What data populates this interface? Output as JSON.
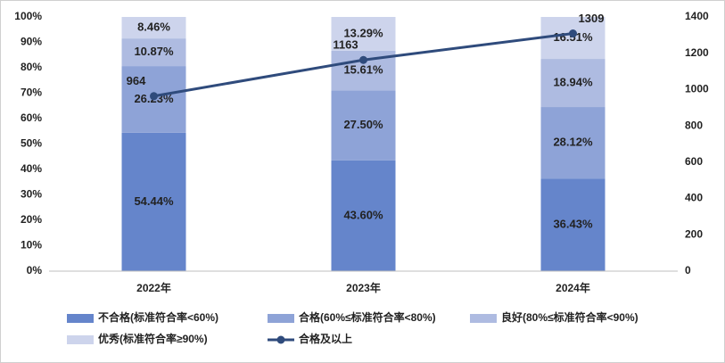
{
  "chart_data": {
    "type": "stacked_bar_line",
    "categories": [
      "2022年",
      "2023年",
      "2024年"
    ],
    "ylim": [
      0,
      100
    ],
    "yticks": [
      {
        "value": 0,
        "label": "0%"
      },
      {
        "value": 10,
        "label": "10%"
      },
      {
        "value": 20,
        "label": "20%"
      },
      {
        "value": 30,
        "label": "30%"
      },
      {
        "value": 40,
        "label": "40%"
      },
      {
        "value": 50,
        "label": "50%"
      },
      {
        "value": 60,
        "label": "60%"
      },
      {
        "value": 70,
        "label": "70%"
      },
      {
        "value": 80,
        "label": "80%"
      },
      {
        "value": 90,
        "label": "90%"
      },
      {
        "value": 100,
        "label": "100%"
      }
    ],
    "y2lim": [
      0,
      1400
    ],
    "y2ticks": [
      0,
      200,
      400,
      600,
      800,
      1000,
      1200,
      1400
    ],
    "series": [
      {
        "name": "不合格(标准符合率<60%)",
        "color": "#6585cb",
        "values": [
          54.44,
          43.6,
          36.43
        ],
        "value_labels": [
          "54.44%",
          "43.60%",
          "36.43%"
        ]
      },
      {
        "name": "合格(60%≤标准符合率<80%)",
        "color": "#8ea3d7",
        "values": [
          26.23,
          27.5,
          28.12
        ],
        "value_labels": [
          "26.23%",
          "27.50%",
          "28.12%"
        ]
      },
      {
        "name": "良好(80%≤标准符合率<90%)",
        "color": "#aebbe1",
        "values": [
          10.87,
          15.61,
          18.94
        ],
        "value_labels": [
          "10.87%",
          "15.61%",
          "18.94%"
        ]
      },
      {
        "name": "优秀(标准符合率≥90%)",
        "color": "#cdd4ec",
        "values": [
          8.46,
          13.29,
          16.51
        ],
        "value_labels": [
          "8.46%",
          "13.29%",
          "16.51%"
        ]
      },
      {
        "name": "合格及以上",
        "color": "#2f4b7c",
        "axis": "y2",
        "type": "line",
        "values": [
          964,
          1163,
          1309
        ]
      }
    ]
  }
}
